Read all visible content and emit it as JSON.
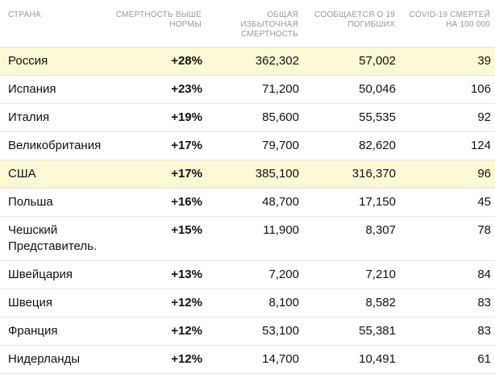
{
  "table": {
    "headers": {
      "country": "СТРАНА",
      "excess": "СМЕРТНОСТЬ ВЫШЕ НОРМЫ",
      "total_excess": "ОБЩАЯ ИЗБЫТОЧНАЯ СМЕРТНОСТЬ",
      "reported": "СООБЩАЕТСЯ О 19 ПОГИБШИХ",
      "per_100k": "COVID-19 СМЕРТЕЙ НА 100 000"
    },
    "rows": [
      {
        "country": "Россия",
        "excess": "+28%",
        "total_excess": "362,302",
        "reported": "57,002",
        "per_100k": "39",
        "highlight": true
      },
      {
        "country": "Испания",
        "excess": "+23%",
        "total_excess": "71,200",
        "reported": "50,046",
        "per_100k": "106",
        "highlight": false
      },
      {
        "country": "Италия",
        "excess": "+19%",
        "total_excess": "85,600",
        "reported": "55,535",
        "per_100k": "92",
        "highlight": false
      },
      {
        "country": "Великобритания",
        "excess": "+17%",
        "total_excess": "79,700",
        "reported": "82,620",
        "per_100k": "124",
        "highlight": false
      },
      {
        "country": "США",
        "excess": "+17%",
        "total_excess": "385,100",
        "reported": "316,370",
        "per_100k": "96",
        "highlight": true
      },
      {
        "country": "Польша",
        "excess": "+16%",
        "total_excess": "48,700",
        "reported": "17,150",
        "per_100k": "45",
        "highlight": false
      },
      {
        "country": "Чешский Представитель.",
        "excess": "+15%",
        "total_excess": "11,900",
        "reported": "8,307",
        "per_100k": "78",
        "highlight": false
      },
      {
        "country": "Швейцария",
        "excess": "+13%",
        "total_excess": "7,200",
        "reported": "7,210",
        "per_100k": "84",
        "highlight": false
      },
      {
        "country": "Швеция",
        "excess": "+12%",
        "total_excess": "8,100",
        "reported": "8,582",
        "per_100k": "83",
        "highlight": false
      },
      {
        "country": "Франция",
        "excess": "+12%",
        "total_excess": "53,100",
        "reported": "55,381",
        "per_100k": "83",
        "highlight": false
      },
      {
        "country": "Нидерланды",
        "excess": "+12%",
        "total_excess": "14,700",
        "reported": "10,491",
        "per_100k": "61",
        "highlight": false
      }
    ]
  },
  "colors": {
    "highlight_row": "#fcf7d4",
    "header_text": "#999999",
    "body_text": "#121212"
  }
}
